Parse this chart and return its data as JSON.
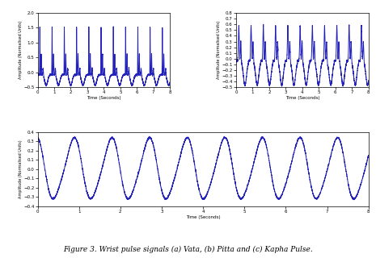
{
  "title": "Figure 3. Wrist pulse signals (a) Vata, (b) Pitta and (c) Kapha Pulse.",
  "background_color": "#ffffff",
  "line_color": "#2222bb",
  "xlim": [
    0,
    8
  ],
  "vata": {
    "ylabel": "Amplitude (Normalised Units)",
    "xlabel": "Time (Seconds)",
    "ylim": [
      -0.5,
      2.0
    ],
    "yticks": [
      -0.5,
      0.0,
      0.5,
      1.0,
      1.5,
      2.0
    ],
    "xticks": [
      0,
      1,
      2,
      3,
      4,
      5,
      6,
      7,
      8
    ],
    "freq": 1.35,
    "amplitude": 1.6
  },
  "pitta": {
    "ylabel": "Amplitude (Normalised Units)",
    "xlabel": "Time (Seconds)",
    "ylim": [
      -0.5,
      0.8
    ],
    "yticks": [
      -0.5,
      -0.4,
      -0.3,
      -0.2,
      -0.1,
      0.0,
      0.1,
      0.2,
      0.3,
      0.4,
      0.5,
      0.6,
      0.7,
      0.8
    ],
    "xticks": [
      0,
      1,
      2,
      3,
      4,
      5,
      6,
      7,
      8
    ],
    "freq": 1.35,
    "amplitude": 0.6
  },
  "kapha": {
    "ylabel": "Amplitude (Normalised Units)",
    "xlabel": "Time (Seconds)",
    "ylim": [
      -0.4,
      0.4
    ],
    "yticks": [
      -0.4,
      -0.3,
      -0.2,
      -0.1,
      0.0,
      0.1,
      0.2,
      0.3,
      0.4
    ],
    "xticks": [
      0,
      1,
      2,
      3,
      4,
      5,
      6,
      7,
      8
    ],
    "freq": 1.1,
    "amplitude": 0.32
  },
  "lw": 0.7,
  "fs_tick": 4.0,
  "fs_label": 4.0,
  "fs_caption": 6.5
}
